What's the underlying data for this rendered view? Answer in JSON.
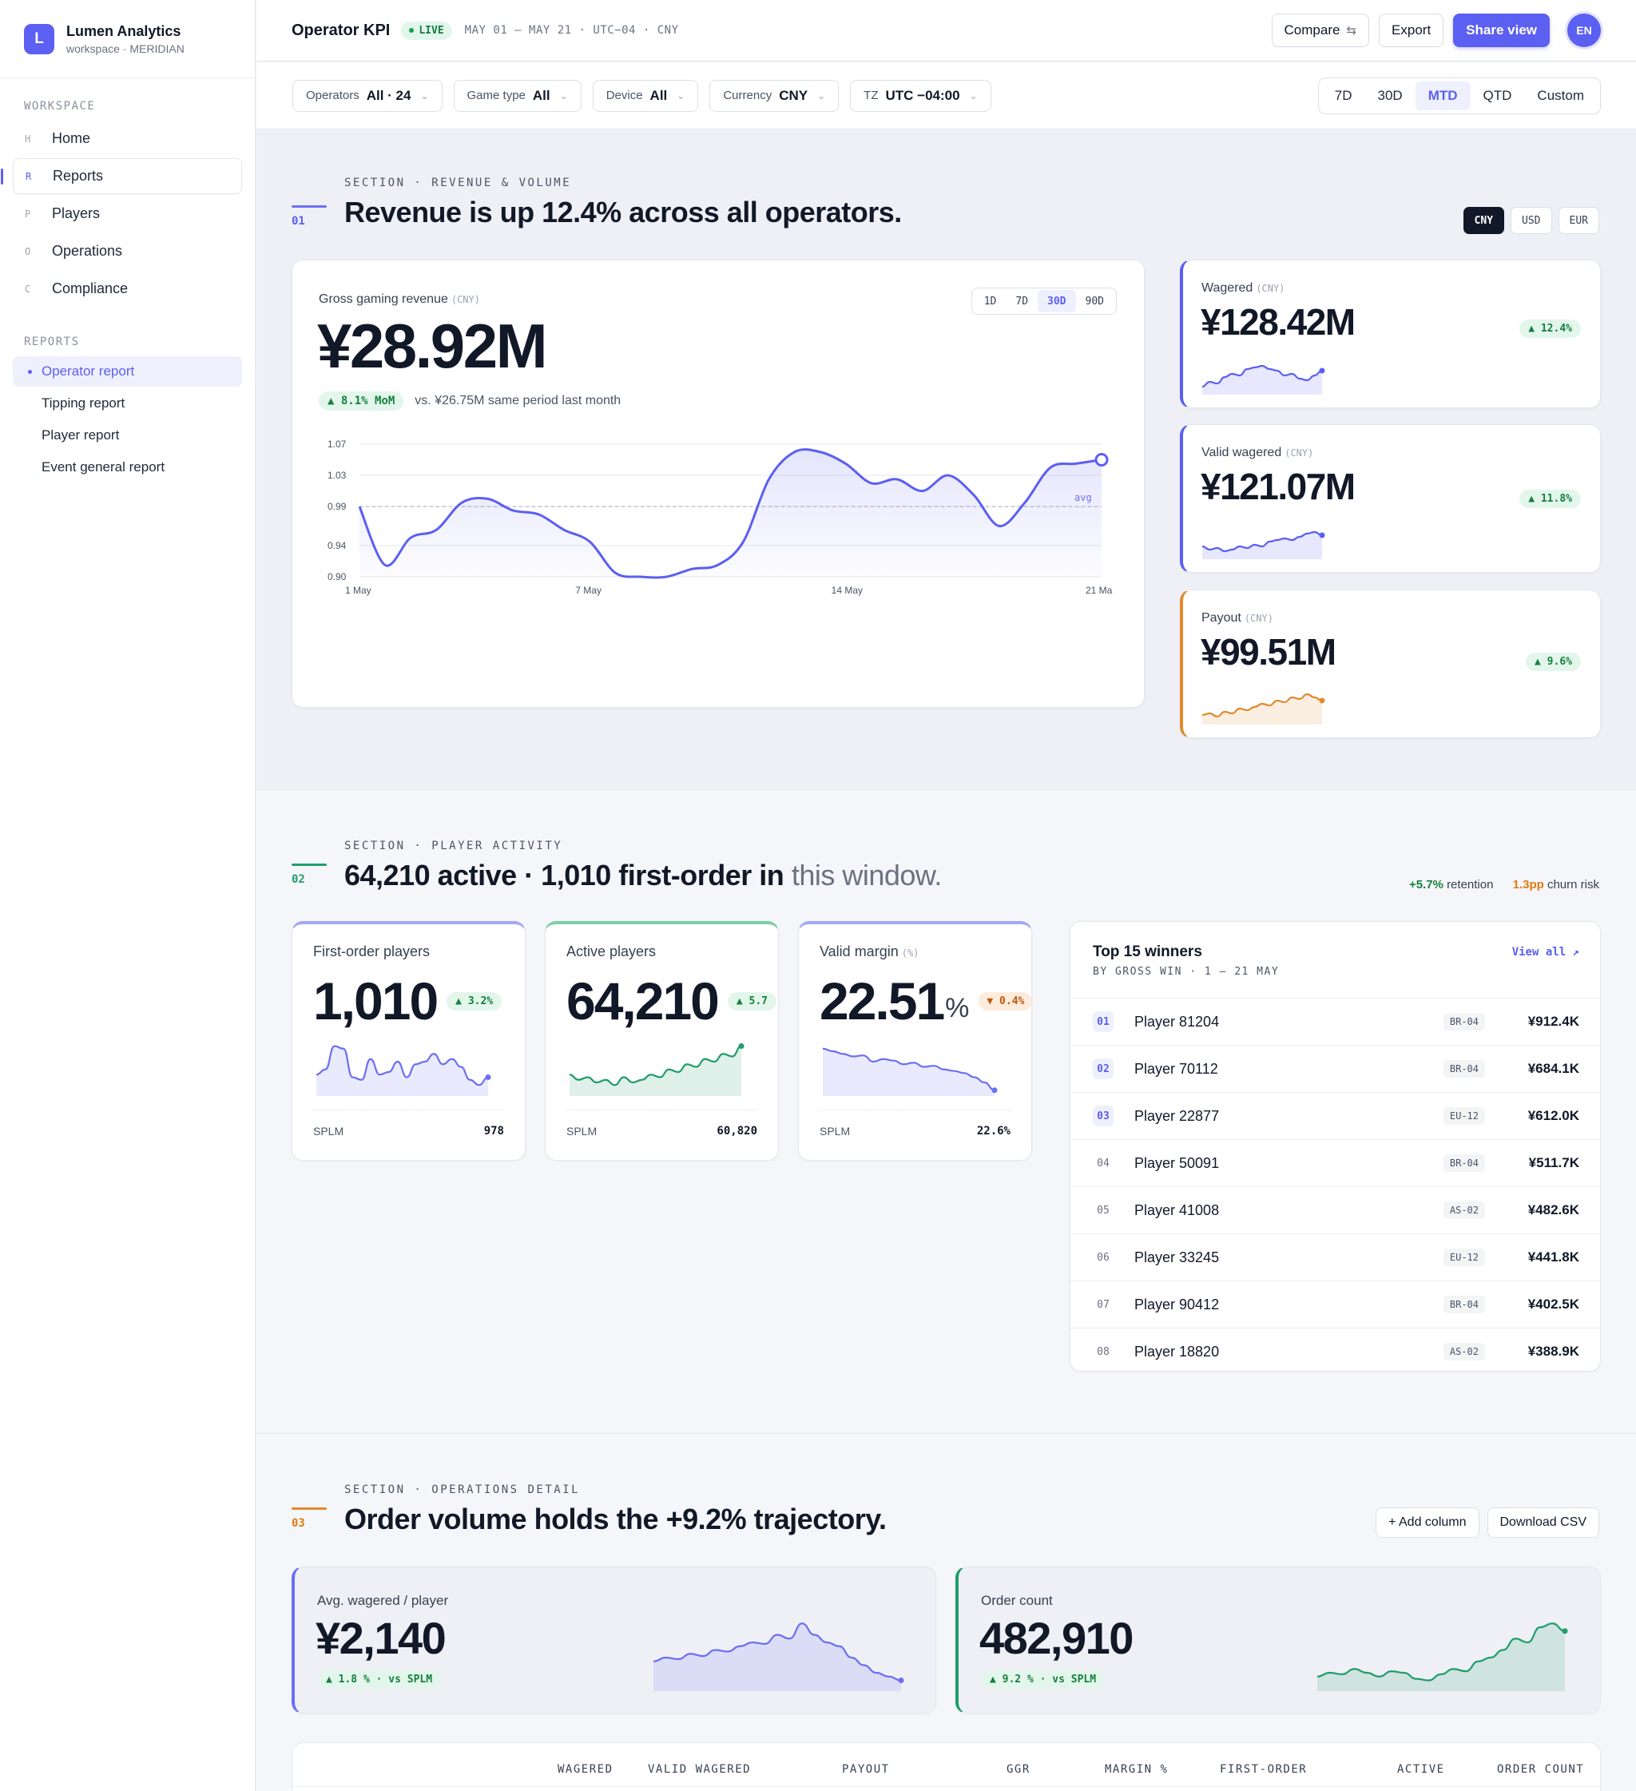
{
  "brand": {
    "initial": "L",
    "name": "Lumen Analytics",
    "sub": "workspace · MERIDIAN"
  },
  "sidebar": {
    "workspace_label": "WORKSPACE",
    "items": [
      {
        "key": "H",
        "label": "Home"
      },
      {
        "key": "R",
        "label": "Reports"
      },
      {
        "key": "P",
        "label": "Players"
      },
      {
        "key": "O",
        "label": "Operations"
      },
      {
        "key": "C",
        "label": "Compliance"
      }
    ],
    "reports_label": "REPORTS",
    "reports": [
      "Operator report",
      "Tipping report",
      "Player report",
      "Event general report"
    ]
  },
  "topbar": {
    "title": "Operator KPI",
    "live": "LIVE",
    "meta": "MAY 01 — MAY 21 · UTC−04 · CNY",
    "compare": "Compare",
    "export": "Export",
    "share": "Share view",
    "avatar": "EN"
  },
  "filters": [
    {
      "label": "Operators",
      "value": "All · 24"
    },
    {
      "label": "Game type",
      "value": "All"
    },
    {
      "label": "Device",
      "value": "All"
    },
    {
      "label": "Currency",
      "value": "CNY"
    },
    {
      "label": "TZ",
      "value": "UTC −04:00"
    }
  ],
  "ranges": [
    "7D",
    "30D",
    "MTD",
    "QTD",
    "Custom"
  ],
  "section1": {
    "num": "01",
    "eyebrow": "SECTION · REVENUE & VOLUME",
    "title": "Revenue is up 12.4% across all operators.",
    "currencies": [
      "CNY",
      "USD",
      "EUR"
    ],
    "ggr": {
      "label": "Gross gaming revenue",
      "unit": "(CNY)",
      "value": "¥28.92M",
      "change": "▲ 8.1% MoM",
      "compare": "vs. ¥26.75M same period last month",
      "timeframes": [
        "1D",
        "7D",
        "30D",
        "90D"
      ]
    },
    "cards": [
      {
        "label": "Wagered",
        "unit": "(CNY)",
        "value": "¥128.42M",
        "change": "▲ 12.4%",
        "color": "#5b5ff2"
      },
      {
        "label": "Valid wagered",
        "unit": "(CNY)",
        "value": "¥121.07M",
        "change": "▲ 11.8%",
        "color": "#5b5ff2"
      },
      {
        "label": "Payout",
        "unit": "(CNY)",
        "value": "¥99.51M",
        "change": "▲ 9.6%",
        "color": "#e08a2e"
      }
    ]
  },
  "chart_data": {
    "type": "line",
    "title": "",
    "xlabel": "",
    "ylabel": "",
    "x_ticks": [
      "1 May",
      "7 May",
      "14 May",
      "21 Ma"
    ],
    "y_ticks": [
      "1.07",
      "1.03",
      "0.99",
      "0.94",
      "0.90"
    ],
    "ylim": [
      0.9,
      1.07
    ],
    "avg": 0.99,
    "avg_label": "avg",
    "values": [
      0.99,
      0.915,
      0.95,
      0.96,
      0.995,
      1.0,
      0.985,
      0.98,
      0.96,
      0.945,
      0.905,
      0.9,
      0.9,
      0.91,
      0.915,
      0.945,
      1.025,
      1.06,
      1.06,
      1.045,
      1.02,
      1.025,
      1.01,
      1.03,
      1.005,
      0.965,
      0.995,
      1.04,
      1.045,
      1.05
    ]
  },
  "section2": {
    "num": "02",
    "eyebrow": "SECTION · PLAYER ACTIVITY",
    "title_main": "64,210 active · 1,010 first-order in",
    "title_muted": "this window.",
    "note_retention_value": "+5.7%",
    "note_retention_label": "retention",
    "note_churn_value": "1.3pp",
    "note_churn_label": "churn risk",
    "kpis": [
      {
        "label": "First-order players",
        "value": "1,010",
        "suffix": "",
        "change": "▲ 3.2%",
        "trend": "up",
        "foot_label": "SPLM",
        "foot_value": "978",
        "color": "#6b6ff2"
      },
      {
        "label": "Active players",
        "value": "64,210",
        "suffix": "",
        "change": "▲ 5.7",
        "trend": "up",
        "foot_label": "SPLM",
        "foot_value": "60,820",
        "color": "#1f9d6a"
      },
      {
        "label": "Valid margin",
        "unit": "(%)",
        "value": "22.51",
        "suffix": "%",
        "change": "▼ 0.4%",
        "trend": "down",
        "foot_label": "SPLM",
        "foot_value": "22.6%",
        "color": "#6b6ff2"
      }
    ],
    "winners": {
      "title": "Top 15 winners",
      "sub": "BY GROSS WIN · 1 – 21 MAY",
      "view_all": "View all ↗",
      "rows": [
        {
          "rank": "01",
          "name": "Player 81204",
          "tag": "BR-04",
          "amount": "¥912.4K"
        },
        {
          "rank": "02",
          "name": "Player 70112",
          "tag": "BR-04",
          "amount": "¥684.1K"
        },
        {
          "rank": "03",
          "name": "Player 22877",
          "tag": "EU-12",
          "amount": "¥612.0K"
        },
        {
          "rank": "04",
          "name": "Player 50091",
          "tag": "BR-04",
          "amount": "¥511.7K"
        },
        {
          "rank": "05",
          "name": "Player 41008",
          "tag": "AS-02",
          "amount": "¥482.6K"
        },
        {
          "rank": "06",
          "name": "Player 33245",
          "tag": "EU-12",
          "amount": "¥441.8K"
        },
        {
          "rank": "07",
          "name": "Player 90412",
          "tag": "BR-04",
          "amount": "¥402.5K"
        },
        {
          "rank": "08",
          "name": "Player 18820",
          "tag": "AS-02",
          "amount": "¥388.9K"
        }
      ]
    }
  },
  "section3": {
    "num": "03",
    "eyebrow": "SECTION · OPERATIONS DETAIL",
    "title": "Order volume holds the +9.2% trajectory.",
    "add_column": "+ Add column",
    "download": "Download CSV",
    "cards": [
      {
        "label": "Avg. wagered / player",
        "value": "¥2,140",
        "change": "▲ 1.8 % · vs SPLM",
        "color": "#6b6ff2"
      },
      {
        "label": "Order count",
        "value": "482,910",
        "change": "▲ 9.2 % · vs SPLM",
        "color": "#1f9d6a"
      }
    ],
    "table_headers": [
      "WAGERED",
      "VALID WAGERED",
      "PAYOUT",
      "GGR",
      "MARGIN %",
      "FIRST-ORDER",
      "ACTIVE",
      "ORDER COUNT"
    ]
  }
}
